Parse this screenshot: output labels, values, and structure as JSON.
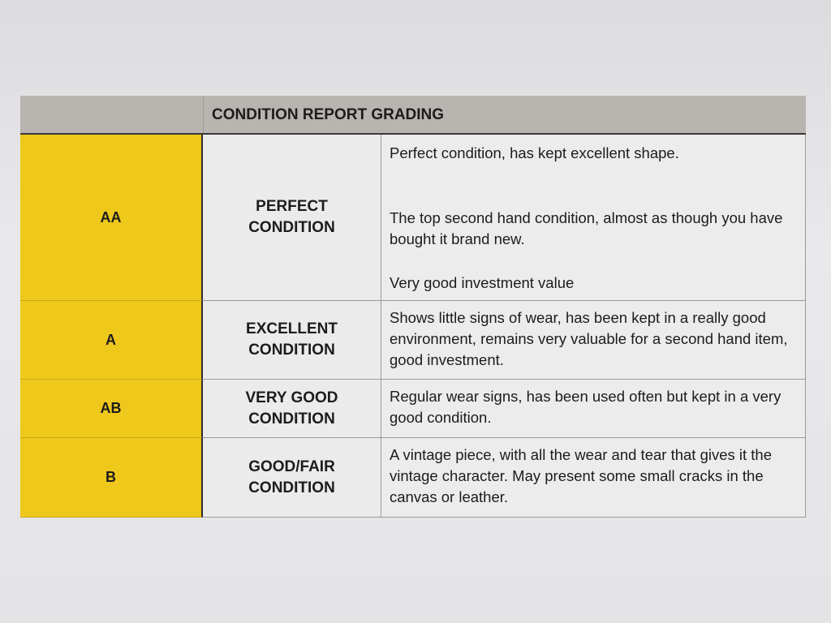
{
  "title": "CONDITION REPORT GRADING",
  "colors": {
    "grade_fill": "#efc81c",
    "header_fill": "#b8b4b0"
  },
  "rows": [
    {
      "grade": "AA",
      "condition": "PERFECT CONDITION",
      "description": [
        "Perfect condition, has kept excellent shape.",
        "The top second hand condition, almost as though you have bought it brand new.",
        "Very good investment value"
      ]
    },
    {
      "grade": "A",
      "condition": "EXCELLENT CONDITION",
      "description": [
        "Shows little signs of wear, has been kept in a really good environment, remains very valuable for a second hand item, good investment."
      ]
    },
    {
      "grade": "AB",
      "condition": "VERY GOOD CONDITION",
      "description": [
        "Regular wear signs, has been used often but kept in a very good condition."
      ]
    },
    {
      "grade": "B",
      "condition": "GOOD/FAIR CONDITION",
      "description": [
        "A vintage piece, with all the wear and tear that gives it the vintage character. May present some small cracks in the canvas or leather."
      ]
    }
  ]
}
